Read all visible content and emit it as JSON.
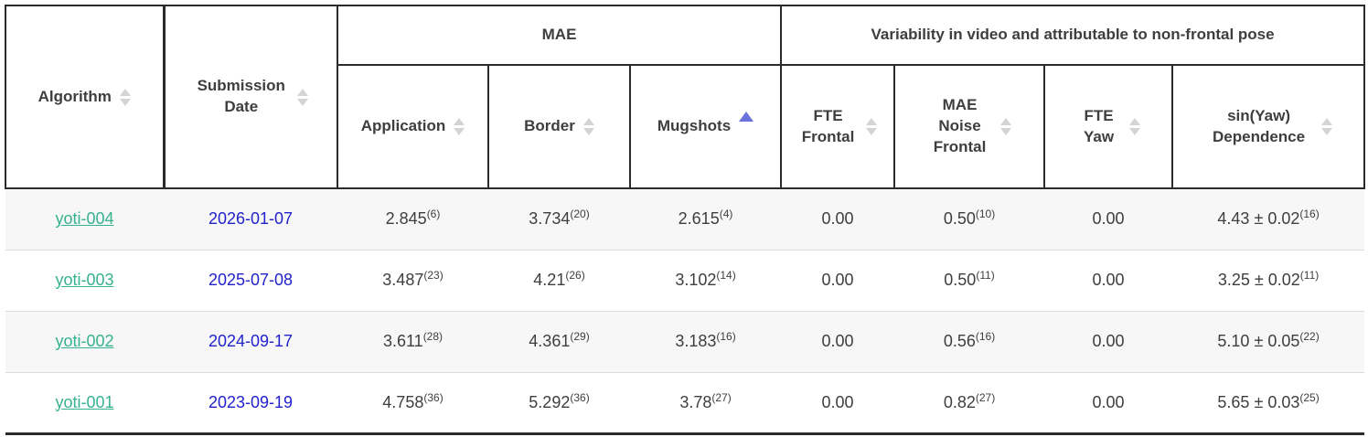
{
  "colors": {
    "border_dark": "#2b2b2b",
    "header_text": "#3e3e3e",
    "body_text": "#3e3e3e",
    "link_teal": "#36b28f",
    "date_blue": "#2222cd",
    "row_stripe": "#f7f7f7",
    "row_separator": "#dcdcdc",
    "sort_neutral": "#d4d4d4",
    "sort_active": "#6a70dc"
  },
  "table": {
    "groups": [
      {
        "label": "MAE",
        "colspan": 3
      },
      {
        "label": "Variability in video and attributable to non-frontal pose",
        "colspan": 4
      }
    ],
    "columns": [
      {
        "label": "Algorithm",
        "sort": "none",
        "icon": "sort-icon"
      },
      {
        "label": "Submission Date",
        "sort": "none",
        "icon": "sort-icon"
      },
      {
        "label": "Application",
        "sort": "none",
        "icon": "sort-icon",
        "group": "MAE"
      },
      {
        "label": "Border",
        "sort": "none",
        "icon": "sort-icon",
        "group": "MAE"
      },
      {
        "label": "Mugshots",
        "sort": "asc",
        "icon": "sort-ascending-icon",
        "group": "MAE"
      },
      {
        "label": "FTE Frontal",
        "sort": "none",
        "icon": "sort-icon",
        "group": "Variability in video and attributable to non-frontal pose"
      },
      {
        "label": "MAE Noise Frontal",
        "sort": "none",
        "icon": "sort-icon",
        "group": "Variability in video and attributable to non-frontal pose"
      },
      {
        "label": "FTE Yaw",
        "sort": "none",
        "icon": "sort-icon",
        "group": "Variability in video and attributable to non-frontal pose"
      },
      {
        "label": "sin(Yaw) Dependence",
        "sort": "none",
        "icon": "sort-icon",
        "group": "Variability in video and attributable to non-frontal pose"
      }
    ],
    "rows": [
      {
        "algorithm": "yoti-004",
        "date": "2026-01-07",
        "cells": [
          {
            "value": "2.845",
            "sup": "(6)"
          },
          {
            "value": "3.734",
            "sup": "(20)"
          },
          {
            "value": "2.615",
            "sup": "(4)"
          },
          {
            "value": "0.00",
            "sup": ""
          },
          {
            "value": "0.50",
            "sup": "(10)"
          },
          {
            "value": "0.00",
            "sup": ""
          },
          {
            "value": "4.43 ± 0.02",
            "sup": "(16)"
          }
        ]
      },
      {
        "algorithm": "yoti-003",
        "date": "2025-07-08",
        "cells": [
          {
            "value": "3.487",
            "sup": "(23)"
          },
          {
            "value": "4.21",
            "sup": "(26)"
          },
          {
            "value": "3.102",
            "sup": "(14)"
          },
          {
            "value": "0.00",
            "sup": ""
          },
          {
            "value": "0.50",
            "sup": "(11)"
          },
          {
            "value": "0.00",
            "sup": ""
          },
          {
            "value": "3.25 ± 0.02",
            "sup": "(11)"
          }
        ]
      },
      {
        "algorithm": "yoti-002",
        "date": "2024-09-17",
        "cells": [
          {
            "value": "3.611",
            "sup": "(28)"
          },
          {
            "value": "4.361",
            "sup": "(29)"
          },
          {
            "value": "3.183",
            "sup": "(16)"
          },
          {
            "value": "0.00",
            "sup": ""
          },
          {
            "value": "0.56",
            "sup": "(16)"
          },
          {
            "value": "0.00",
            "sup": ""
          },
          {
            "value": "5.10 ± 0.05",
            "sup": "(22)"
          }
        ]
      },
      {
        "algorithm": "yoti-001",
        "date": "2023-09-19",
        "cells": [
          {
            "value": "4.758",
            "sup": "(36)"
          },
          {
            "value": "5.292",
            "sup": "(36)"
          },
          {
            "value": "3.78",
            "sup": "(27)"
          },
          {
            "value": "0.00",
            "sup": ""
          },
          {
            "value": "0.82",
            "sup": "(27)"
          },
          {
            "value": "0.00",
            "sup": ""
          },
          {
            "value": "5.65 ± 0.03",
            "sup": "(25)"
          }
        ]
      }
    ]
  }
}
